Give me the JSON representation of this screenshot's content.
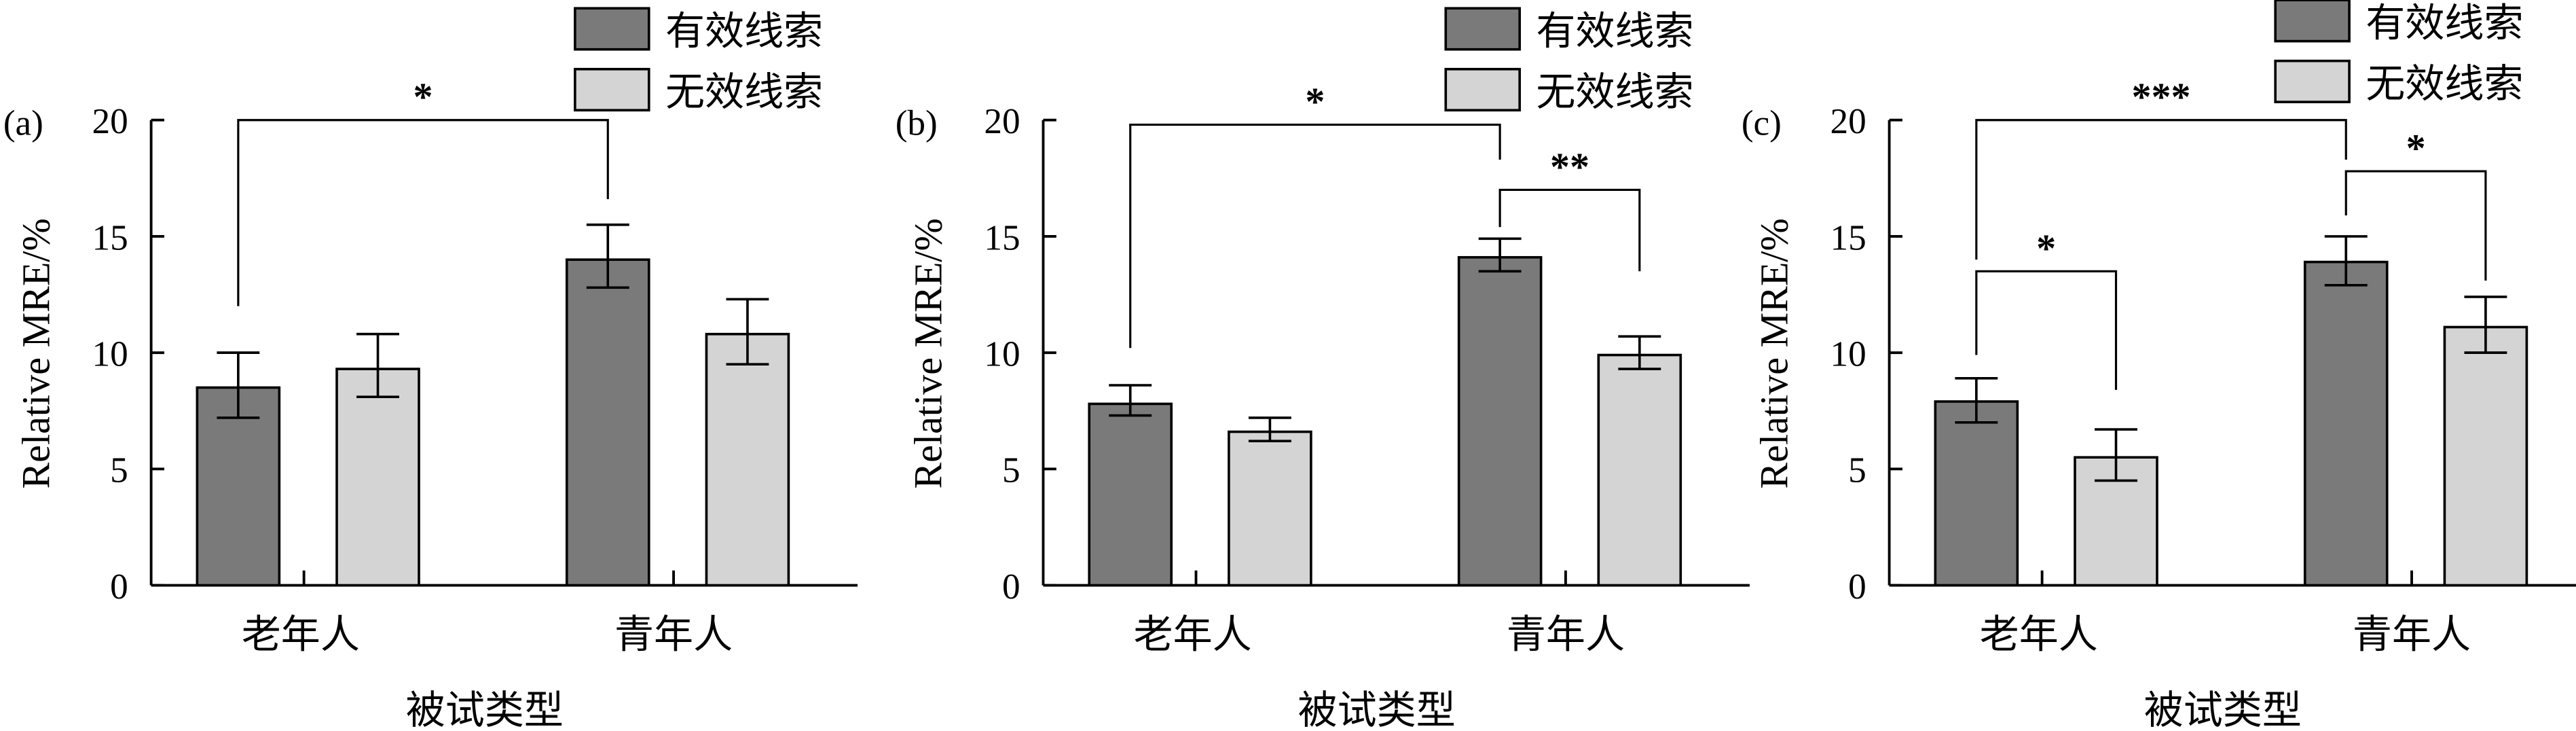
{
  "legend": [
    {
      "label": "有效线索",
      "color": "#7a7a7a"
    },
    {
      "label": "无效线索",
      "color": "#d4d4d4"
    }
  ],
  "chart_data": [
    {
      "type": "bar",
      "panel_label": "(a)",
      "categories": [
        "老年人",
        "青年人"
      ],
      "xlabel": "被试类型",
      "ylabel": "Relative MRE/%",
      "ylim": [
        0,
        20
      ],
      "yticks": [
        0,
        5,
        10,
        15,
        20
      ],
      "series": [
        {
          "name": "有效线索",
          "values": [
            8.5,
            14.0
          ],
          "err_low": [
            7.2,
            12.8
          ],
          "err_high": [
            10.0,
            15.5
          ]
        },
        {
          "name": "无效线索",
          "values": [
            9.3,
            10.8
          ],
          "err_low": [
            8.1,
            9.5
          ],
          "err_high": [
            10.8,
            12.3
          ]
        }
      ],
      "significance": [
        {
          "from_bar": 0,
          "to_bar": 2,
          "top": 20,
          "left_foot": 12.0,
          "right_foot": 16.6,
          "label": "*"
        }
      ]
    },
    {
      "type": "bar",
      "panel_label": "(b)",
      "categories": [
        "老年人",
        "青年人"
      ],
      "xlabel": "被试类型",
      "ylabel": "Relative MRE/%",
      "ylim": [
        0,
        20
      ],
      "yticks": [
        0,
        5,
        10,
        15,
        20
      ],
      "series": [
        {
          "name": "有效线索",
          "values": [
            7.8,
            14.1
          ],
          "err_low": [
            7.3,
            13.5
          ],
          "err_high": [
            8.6,
            14.9
          ]
        },
        {
          "name": "无效线索",
          "values": [
            6.6,
            9.9
          ],
          "err_low": [
            6.2,
            9.3
          ],
          "err_high": [
            7.2,
            10.7
          ]
        }
      ],
      "significance": [
        {
          "from_bar": 0,
          "to_bar": 2,
          "top": 19.8,
          "left_foot": 10.2,
          "right_foot": 18.3,
          "label": "*"
        },
        {
          "from_bar": 2,
          "to_bar": 3,
          "top": 17.0,
          "left_foot": 15.4,
          "right_foot": 13.5,
          "label": "**"
        }
      ]
    },
    {
      "type": "bar",
      "panel_label": "(c)",
      "categories": [
        "老年人",
        "青年人"
      ],
      "xlabel": "被试类型",
      "ylabel": "Relative MRE/%",
      "ylim": [
        0,
        20
      ],
      "yticks": [
        0,
        5,
        10,
        15,
        20
      ],
      "series": [
        {
          "name": "有效线索",
          "values": [
            7.9,
            13.9
          ],
          "err_low": [
            7.0,
            12.9
          ],
          "err_high": [
            8.9,
            15.0
          ]
        },
        {
          "name": "无效线索",
          "values": [
            5.5,
            11.1
          ],
          "err_low": [
            4.5,
            10.0
          ],
          "err_high": [
            6.7,
            12.4
          ]
        }
      ],
      "significance": [
        {
          "from_bar": 0,
          "to_bar": 2,
          "top": 20.0,
          "left_foot": 14.0,
          "right_foot": 18.3,
          "label": "***"
        },
        {
          "from_bar": 2,
          "to_bar": 3,
          "top": 17.8,
          "left_foot": 15.9,
          "right_foot": 13.1,
          "label": "*"
        },
        {
          "from_bar": 0,
          "to_bar": 1,
          "top": 13.5,
          "left_foot": 9.9,
          "right_foot": 8.4,
          "label": "*"
        }
      ]
    }
  ]
}
